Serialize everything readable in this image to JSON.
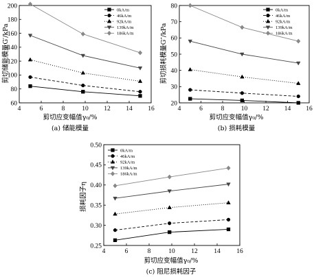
{
  "chart_data": [
    {
      "type": "line",
      "caption": "(a)  储能模量",
      "xlabel": "剪切应变幅值γ₀/%",
      "ylabel": "剪切储能模量G′/kPa",
      "xlim": [
        4,
        16
      ],
      "ylim": [
        60,
        200
      ],
      "xticks": [
        "4",
        "6",
        "8",
        "10",
        "12",
        "14",
        "16"
      ],
      "yticks": [
        "60",
        "80",
        "100",
        "120",
        "140",
        "160",
        "180",
        "200"
      ],
      "legend": "top-right",
      "x": [
        5,
        9.8,
        15
      ],
      "series": [
        {
          "name": "0kA/m",
          "marker": "square",
          "dash": "solid",
          "color": "#000000",
          "values": [
            84,
            76,
            70
          ]
        },
        {
          "name": "46kA/m",
          "marker": "circle",
          "dash": "dashed",
          "color": "#000000",
          "values": [
            97,
            85,
            76
          ]
        },
        {
          "name": "92kA/m",
          "marker": "triangle-up",
          "dash": "dotted",
          "color": "#000000",
          "values": [
            122,
            103,
            91
          ]
        },
        {
          "name": "139kA/m",
          "marker": "triangle-down",
          "dash": "solid",
          "color": "#444444",
          "values": [
            157,
            128,
            110
          ]
        },
        {
          "name": "186kA/m",
          "marker": "diamond",
          "dash": "solid",
          "color": "#888888",
          "values": [
            202,
            159,
            132
          ]
        }
      ]
    },
    {
      "type": "line",
      "caption": "(b)  损耗模量",
      "xlabel": "剪切应变幅值γ₀/%",
      "ylabel": "剪切损耗模量G″/kPa",
      "xlim": [
        4,
        16
      ],
      "ylim": [
        20,
        80
      ],
      "xticks": [
        "4",
        "6",
        "8",
        "10",
        "12",
        "14",
        "16"
      ],
      "yticks": [
        "20",
        "30",
        "40",
        "50",
        "60",
        "70",
        "80"
      ],
      "legend": "top-right",
      "x": [
        5,
        9.8,
        15
      ],
      "series": [
        {
          "name": "0kA/m",
          "marker": "square",
          "dash": "solid",
          "color": "#000000",
          "values": [
            22.5,
            21.5,
            20
          ]
        },
        {
          "name": "46kA/m",
          "marker": "circle",
          "dash": "dashed",
          "color": "#000000",
          "values": [
            28,
            26,
            24
          ]
        },
        {
          "name": "92kA/m",
          "marker": "triangle-up",
          "dash": "dotted",
          "color": "#000000",
          "values": [
            40.5,
            36,
            32
          ]
        },
        {
          "name": "139kA/m",
          "marker": "triangle-down",
          "dash": "solid",
          "color": "#444444",
          "values": [
            58,
            50,
            44.5
          ]
        },
        {
          "name": "186kA/m",
          "marker": "diamond",
          "dash": "solid",
          "color": "#888888",
          "values": [
            80,
            66.5,
            58
          ]
        }
      ]
    },
    {
      "type": "line",
      "caption": "(c)  阻尼损耗因子",
      "xlabel": "剪切应变幅值γ₀/%",
      "ylabel": "损耗因子η",
      "xlim": [
        4,
        16
      ],
      "ylim": [
        0.25,
        0.5
      ],
      "xticks": [
        "4",
        "6",
        "8",
        "10",
        "12",
        "14",
        "16"
      ],
      "yticks": [
        "0.25",
        "0.30",
        "0.35",
        "0.40",
        "0.45",
        "0.50"
      ],
      "legend": "top-left",
      "x": [
        5,
        9.8,
        15
      ],
      "series": [
        {
          "name": "0kA/m",
          "marker": "square",
          "dash": "solid",
          "color": "#000000",
          "values": [
            0.263,
            0.283,
            0.29
          ]
        },
        {
          "name": "46kA/m",
          "marker": "circle",
          "dash": "dashed",
          "color": "#000000",
          "values": [
            0.288,
            0.305,
            0.314
          ]
        },
        {
          "name": "92kA/m",
          "marker": "triangle-up",
          "dash": "dotted",
          "color": "#000000",
          "values": [
            0.328,
            0.344,
            0.356
          ]
        },
        {
          "name": "139kA/m",
          "marker": "triangle-down",
          "dash": "solid",
          "color": "#444444",
          "values": [
            0.367,
            0.385,
            0.402
          ]
        },
        {
          "name": "186kA/m",
          "marker": "diamond",
          "dash": "solid",
          "color": "#888888",
          "values": [
            0.398,
            0.42,
            0.442
          ]
        }
      ]
    }
  ]
}
